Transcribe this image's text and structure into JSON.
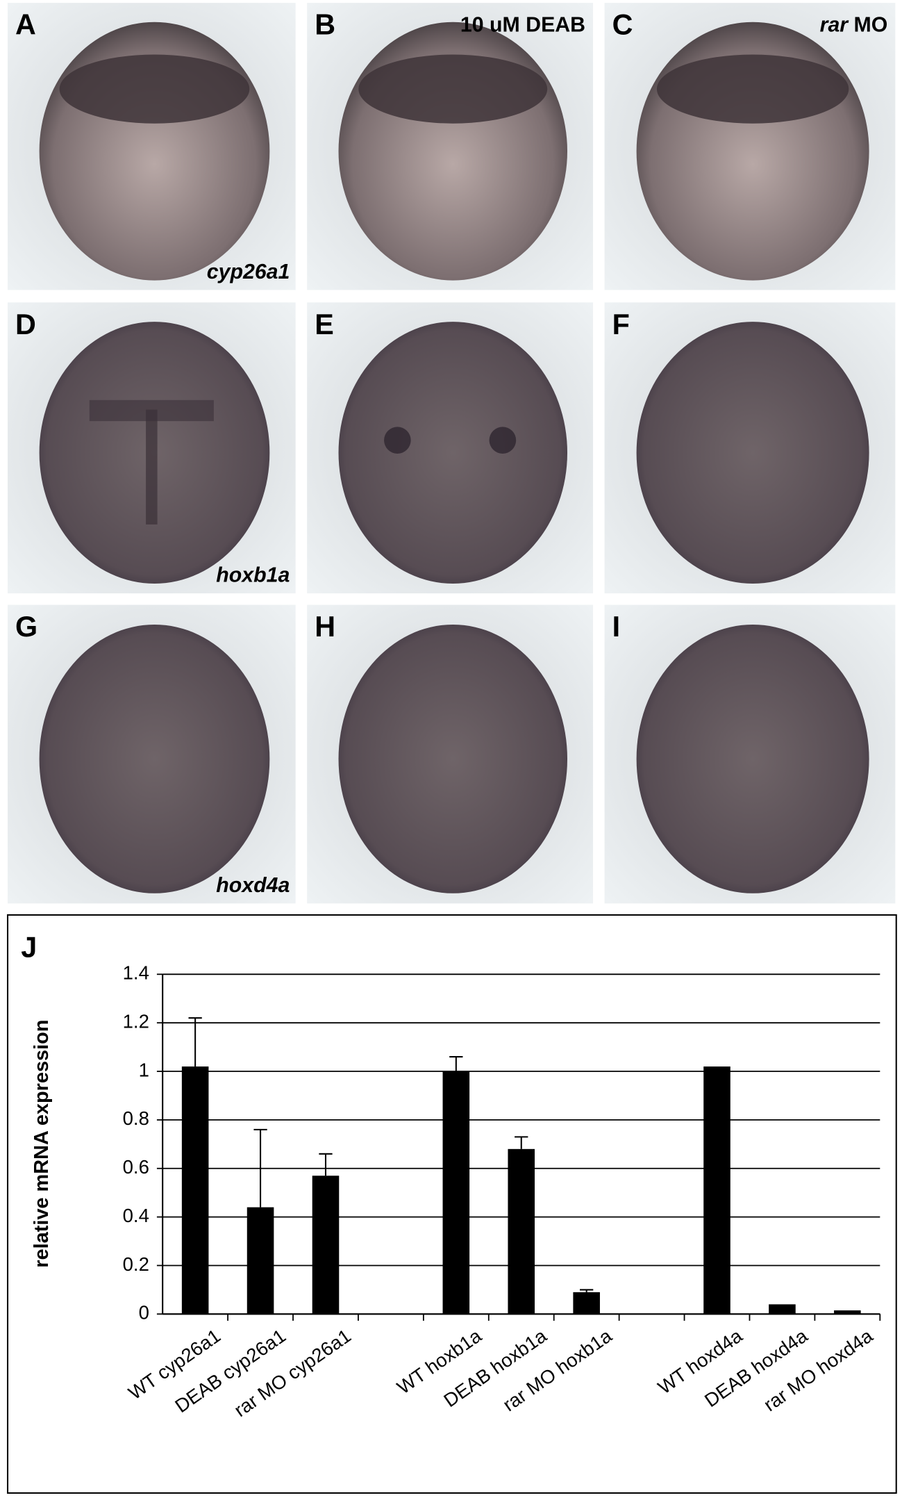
{
  "panels": [
    {
      "letter": "A",
      "gene": "cyp26a1"
    },
    {
      "letter": "B",
      "treatment": "10 uM DEAB"
    },
    {
      "letter": "C",
      "gene_italic": "rar",
      "treatment": "MO"
    },
    {
      "letter": "D",
      "gene": "hoxb1a"
    },
    {
      "letter": "E"
    },
    {
      "letter": "F"
    },
    {
      "letter": "G",
      "gene": "hoxd4a"
    },
    {
      "letter": "H"
    },
    {
      "letter": "I"
    }
  ],
  "chart_data": {
    "type": "bar",
    "panel": "J",
    "ylabel": "relative mRNA expression",
    "categories": [
      "WT cyp26a1",
      "DEAB cyp26a1",
      "rar MO cyp26a1",
      null,
      "WT hoxb1a",
      "DEAB hoxb1a",
      "rar MO hoxb1a",
      null,
      "WT hoxd4a",
      "DEAB hoxd4a",
      "rar MO hoxd4a"
    ],
    "values": [
      1.02,
      0.44,
      0.57,
      null,
      1.0,
      0.68,
      0.09,
      null,
      1.02,
      0.04,
      0.015
    ],
    "errors": [
      0.2,
      0.32,
      0.09,
      null,
      0.06,
      0.05,
      0.01,
      null,
      null,
      null,
      null
    ],
    "color": "#000000",
    "ylim": [
      0,
      1.4
    ],
    "yticks": [
      0,
      0.2,
      0.4,
      0.6,
      0.8,
      1,
      1.2,
      1.4
    ],
    "grid": true
  }
}
